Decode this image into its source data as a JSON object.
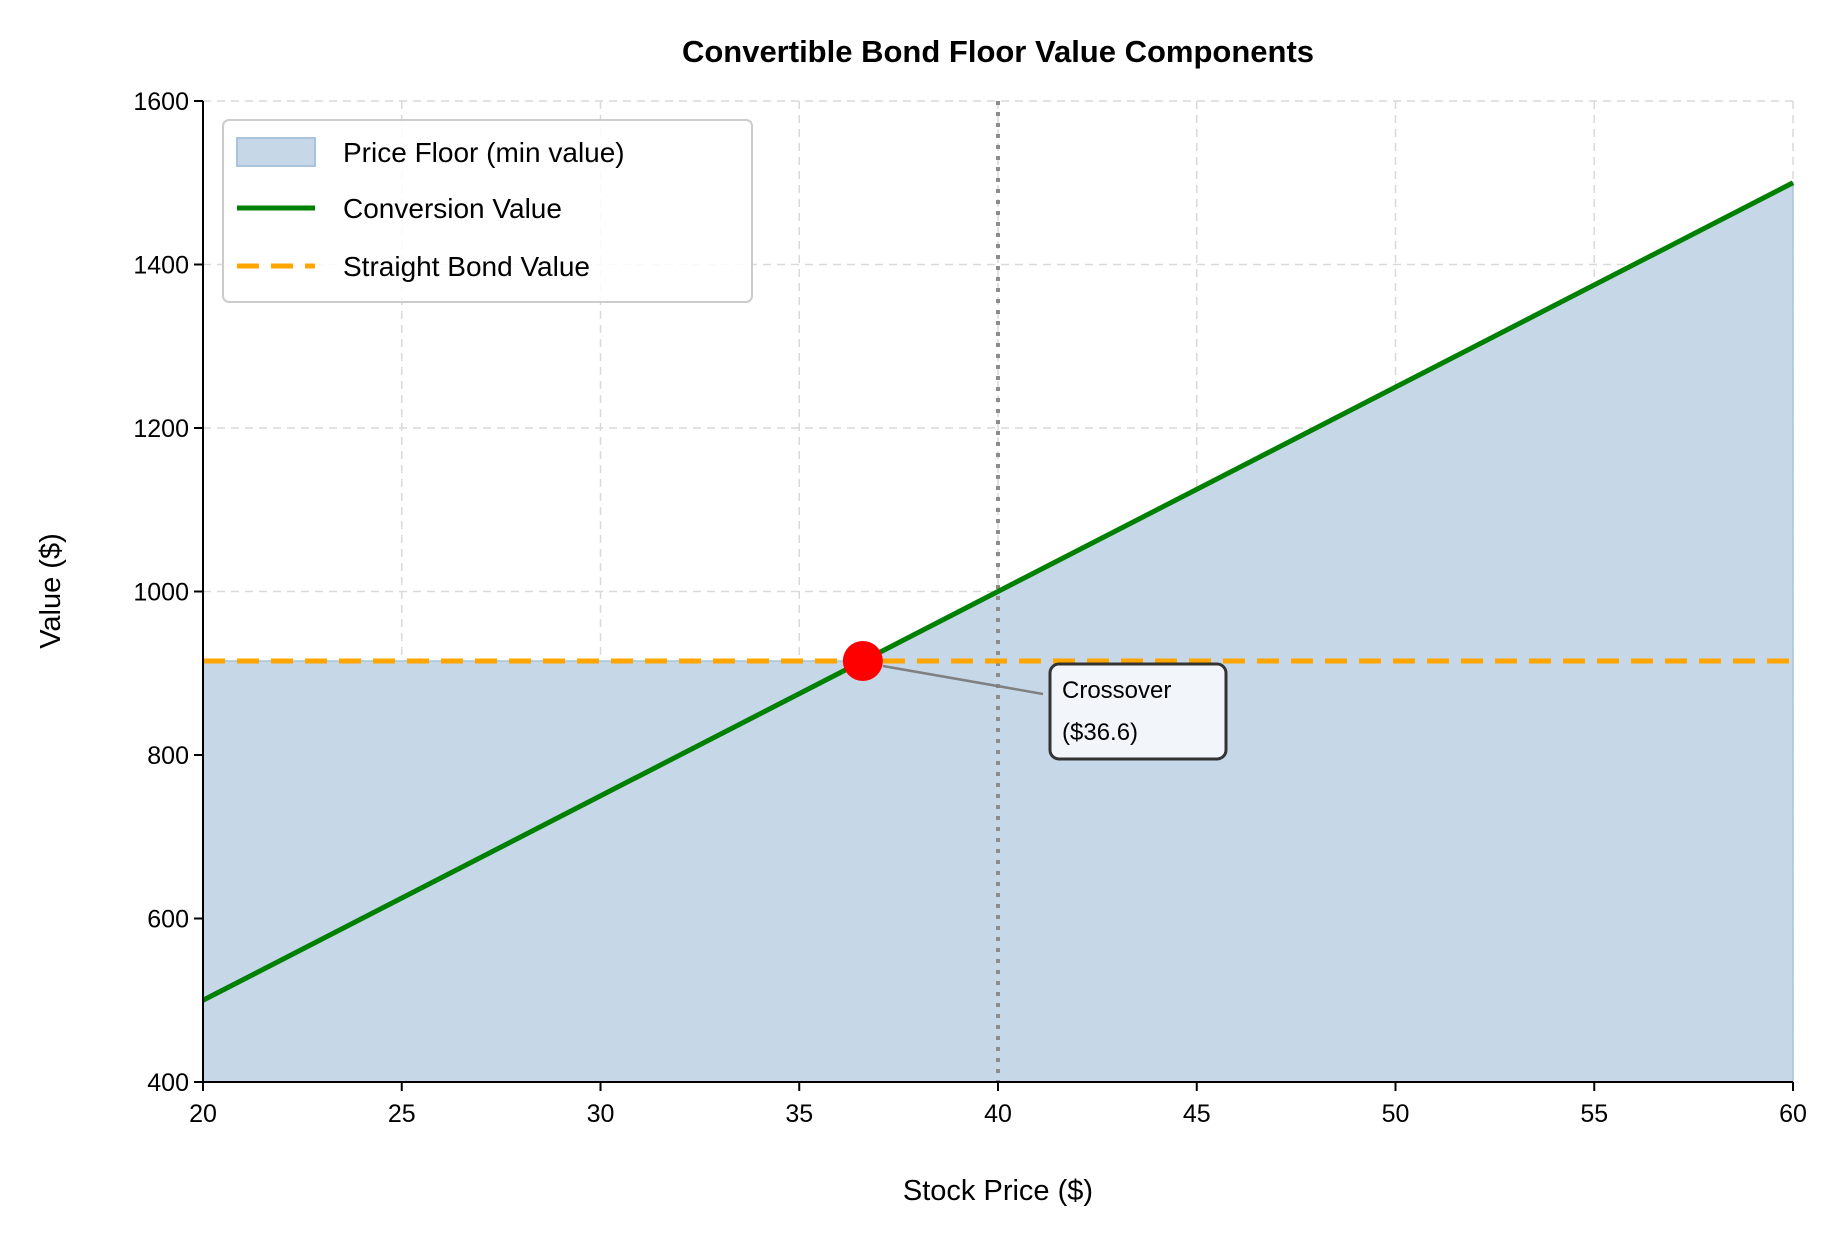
{
  "chart_data": {
    "type": "line",
    "title": "Convertible Bond Floor Value Components",
    "xlabel": "Stock Price ($)",
    "ylabel": "Value ($)",
    "xlim": [
      20,
      60
    ],
    "ylim": [
      400,
      1600
    ],
    "xticks": [
      20,
      25,
      30,
      35,
      40,
      45,
      50,
      55,
      60
    ],
    "yticks": [
      400,
      600,
      800,
      1000,
      1200,
      1400,
      1600
    ],
    "grid": true,
    "legend_placement": "top-left",
    "series": [
      {
        "name": "Price Floor (min value)",
        "kind": "area",
        "color": "#c6d8e8",
        "x": [
          20,
          36.6,
          60
        ],
        "y": [
          915,
          915,
          1500
        ]
      },
      {
        "name": "Conversion Value",
        "kind": "line",
        "color": "#008000",
        "x": [
          20,
          60
        ],
        "y": [
          500,
          1500
        ]
      },
      {
        "name": "Straight Bond Value",
        "kind": "dashed-line",
        "color": "#ffa500",
        "x": [
          20,
          60
        ],
        "y": [
          915,
          915
        ]
      }
    ],
    "vertical_reference_line": {
      "x": 40,
      "style": "dotted",
      "color": "#8c8c8c"
    },
    "marker": {
      "x": 36.6,
      "y": 915,
      "color": "#ff0000"
    },
    "annotation": {
      "line1": "Crossover",
      "line2": "($36.6)"
    }
  }
}
